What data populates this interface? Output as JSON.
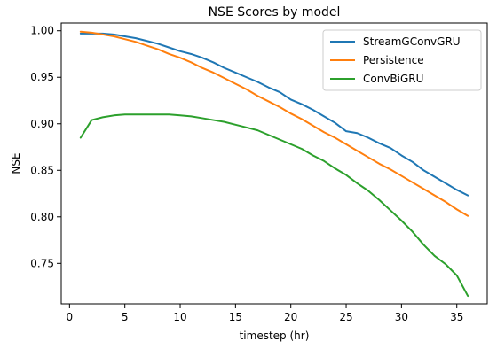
{
  "chart_data": {
    "type": "line",
    "title": "NSE Scores by model",
    "xlabel": "timestep (hr)",
    "ylabel": "NSE",
    "xlim": [
      -0.75,
      37.75
    ],
    "ylim": [
      0.7065,
      1.0083
    ],
    "xticks": [
      0,
      5,
      10,
      15,
      20,
      25,
      30,
      35
    ],
    "xtick_labels": [
      "0",
      "5",
      "10",
      "15",
      "20",
      "25",
      "30",
      "35"
    ],
    "yticks": [
      0.75,
      0.8,
      0.85,
      0.9,
      0.95,
      1.0
    ],
    "ytick_labels": [
      "0.75",
      "0.80",
      "0.85",
      "0.90",
      "0.95",
      "1.00"
    ],
    "grid": false,
    "legend_position": "top-right",
    "x": [
      1,
      2,
      3,
      4,
      5,
      6,
      7,
      8,
      9,
      10,
      11,
      12,
      13,
      14,
      15,
      16,
      17,
      18,
      19,
      20,
      21,
      22,
      23,
      24,
      25,
      26,
      27,
      28,
      29,
      30,
      31,
      32,
      33,
      34,
      35,
      36
    ],
    "series": [
      {
        "name": "StreamGConvGRU",
        "color": "#1f77b4",
        "values": [
          0.997,
          0.997,
          0.997,
          0.996,
          0.994,
          0.992,
          0.989,
          0.986,
          0.982,
          0.978,
          0.975,
          0.971,
          0.966,
          0.96,
          0.955,
          0.95,
          0.945,
          0.939,
          0.934,
          0.926,
          0.921,
          0.915,
          0.908,
          0.901,
          0.892,
          0.89,
          0.885,
          0.879,
          0.874,
          0.866,
          0.859,
          0.85,
          0.843,
          0.836,
          0.829,
          0.823
        ]
      },
      {
        "name": "Persistence",
        "color": "#ff7f0e",
        "values": [
          0.999,
          0.998,
          0.996,
          0.994,
          0.991,
          0.988,
          0.984,
          0.98,
          0.975,
          0.971,
          0.966,
          0.96,
          0.955,
          0.949,
          0.943,
          0.937,
          0.93,
          0.924,
          0.918,
          0.911,
          0.905,
          0.898,
          0.891,
          0.885,
          0.878,
          0.871,
          0.864,
          0.857,
          0.851,
          0.844,
          0.837,
          0.83,
          0.823,
          0.816,
          0.808,
          0.801
        ]
      },
      {
        "name": "ConvBiGRU",
        "color": "#2ca02c",
        "values": [
          0.885,
          0.904,
          0.907,
          0.909,
          0.91,
          0.91,
          0.91,
          0.91,
          0.91,
          0.909,
          0.908,
          0.906,
          0.904,
          0.902,
          0.899,
          0.896,
          0.893,
          0.888,
          0.883,
          0.878,
          0.873,
          0.866,
          0.86,
          0.852,
          0.845,
          0.836,
          0.828,
          0.818,
          0.807,
          0.796,
          0.784,
          0.77,
          0.758,
          0.749,
          0.737,
          0.715
        ]
      }
    ]
  }
}
